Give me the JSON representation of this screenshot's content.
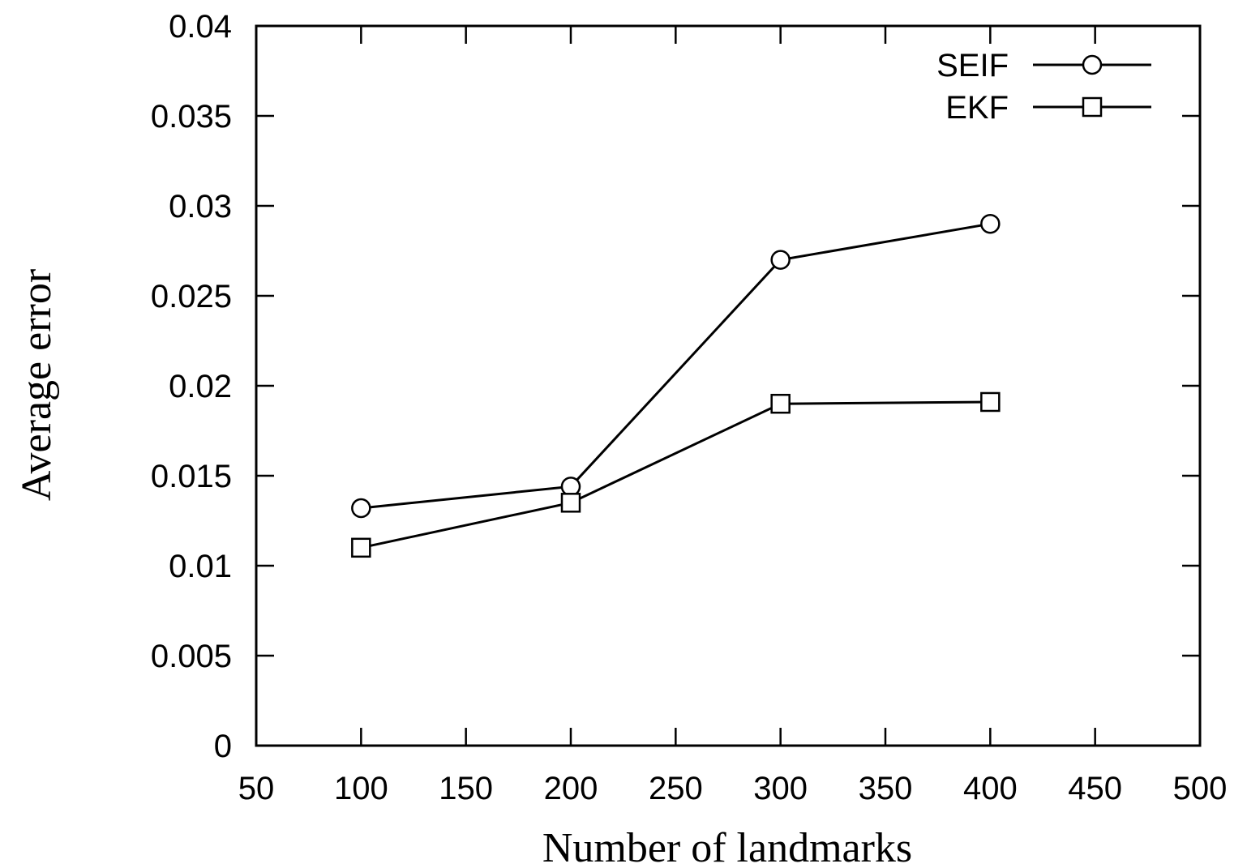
{
  "chart_data": {
    "type": "line",
    "xlabel": "Number of landmarks",
    "ylabel": "Average error",
    "xlim": [
      50,
      500
    ],
    "ylim": [
      0,
      0.04
    ],
    "xticks": [
      50,
      100,
      150,
      200,
      250,
      300,
      350,
      400,
      450,
      500
    ],
    "xtick_labels": [
      "50",
      "100",
      "150",
      "200",
      "250",
      "300",
      "350",
      "400",
      "450",
      "500"
    ],
    "yticks": [
      0,
      0.005,
      0.01,
      0.015,
      0.02,
      0.025,
      0.03,
      0.035,
      0.04
    ],
    "ytick_labels": [
      "0",
      "0.005",
      "0.01",
      "0.015",
      "0.02",
      "0.025",
      "0.03",
      "0.035",
      "0.04"
    ],
    "grid": false,
    "legend_position": "top-right",
    "x": [
      100,
      200,
      300,
      400
    ],
    "series": [
      {
        "name": "SEIF",
        "marker": "circle",
        "values": [
          0.0132,
          0.0144,
          0.027,
          0.029
        ]
      },
      {
        "name": "EKF",
        "marker": "square",
        "values": [
          0.011,
          0.0135,
          0.019,
          0.0191
        ]
      }
    ]
  }
}
